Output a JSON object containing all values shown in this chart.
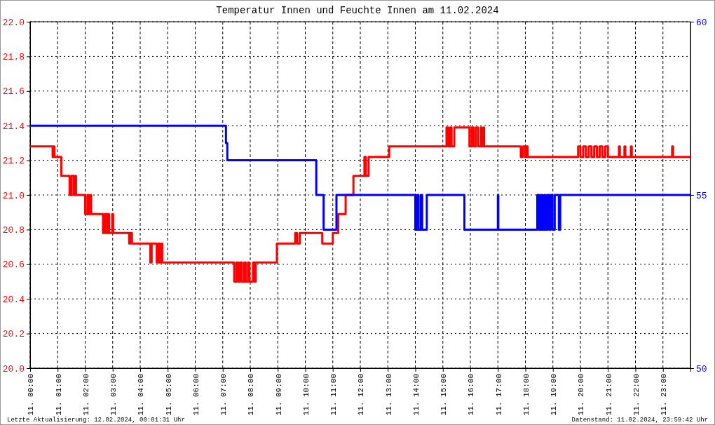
{
  "chart_data": {
    "type": "step",
    "title": "Temperatur Innen und Feuchte Innen am 11.02.2024",
    "annotations": [
      "Letzte Aktualisierung: 12.02.2024, 00:01:31 Uhr",
      "Datenstand: 11.02.2024, 23:59:42 Uhr"
    ],
    "xlim": [
      "2024-02-11T00:00",
      "2024-02-12T00:00"
    ],
    "xticks": [
      {
        "value": "2024-02-11T00:00",
        "label": "11. 00:00"
      },
      {
        "value": "2024-02-11T01:00",
        "label": "11. 01:00"
      },
      {
        "value": "2024-02-11T02:00",
        "label": "11. 02:00"
      },
      {
        "value": "2024-02-11T03:00",
        "label": "11. 03:00"
      },
      {
        "value": "2024-02-11T04:00",
        "label": "11. 04:00"
      },
      {
        "value": "2024-02-11T05:00",
        "label": "11. 05:00"
      },
      {
        "value": "2024-02-11T06:00",
        "label": "11. 06:00"
      },
      {
        "value": "2024-02-11T07:00",
        "label": "11. 07:00"
      },
      {
        "value": "2024-02-11T08:00",
        "label": "11. 08:00"
      },
      {
        "value": "2024-02-11T09:00",
        "label": "11. 09:00"
      },
      {
        "value": "2024-02-11T10:00",
        "label": "11. 10:00"
      },
      {
        "value": "2024-02-11T11:00",
        "label": "11. 11:00"
      },
      {
        "value": "2024-02-11T12:00",
        "label": "11. 12:00"
      },
      {
        "value": "2024-02-11T13:00",
        "label": "11. 13:00"
      },
      {
        "value": "2024-02-11T14:00",
        "label": "11. 14:00"
      },
      {
        "value": "2024-02-11T15:00",
        "label": "11. 15:00"
      },
      {
        "value": "2024-02-11T16:00",
        "label": "11. 16:00"
      },
      {
        "value": "2024-02-11T17:00",
        "label": "11. 17:00"
      },
      {
        "value": "2024-02-11T18:00",
        "label": "11. 18:00"
      },
      {
        "value": "2024-02-11T19:00",
        "label": "11. 19:00"
      },
      {
        "value": "2024-02-11T20:00",
        "label": "11. 20:00"
      },
      {
        "value": "2024-02-11T21:00",
        "label": "11. 21:00"
      },
      {
        "value": "2024-02-11T22:00",
        "label": "11. 22:00"
      },
      {
        "value": "2024-02-11T23:00",
        "label": "11. 23:00"
      }
    ],
    "ylim": [
      20,
      22
    ],
    "yticks": [
      {
        "value": 20,
        "label": "20.0"
      },
      {
        "value": 20.2,
        "label": "20.2"
      },
      {
        "value": 20.4,
        "label": "20.4"
      },
      {
        "value": 20.6,
        "label": "20.6"
      },
      {
        "value": 20.8,
        "label": "20.8"
      },
      {
        "value": 21,
        "label": "21.0"
      },
      {
        "value": 21.2,
        "label": "21.2"
      },
      {
        "value": 21.4,
        "label": "21.4"
      },
      {
        "value": 21.6,
        "label": "21.6"
      },
      {
        "value": 21.8,
        "label": "21.8"
      },
      {
        "value": 22,
        "label": "22.0"
      }
    ],
    "y2lim": [
      50,
      60
    ],
    "y2ticks": [
      50,
      55,
      60
    ],
    "grid": true,
    "series": [
      {
        "color": "#ff0000",
        "x": [
          "2024-02-11T00:00",
          "2024-02-11T00:49",
          "2024-02-11T00:51",
          "2024-02-11T00:53",
          "2024-02-11T01:08",
          "2024-02-11T01:26",
          "2024-02-11T01:30",
          "2024-02-11T01:35",
          "2024-02-11T01:38",
          "2024-02-11T01:40",
          "2024-02-11T02:00",
          "2024-02-11T02:05",
          "2024-02-11T02:08",
          "2024-02-11T02:12",
          "2024-02-11T02:13",
          "2024-02-11T02:39",
          "2024-02-11T02:43",
          "2024-02-11T02:47",
          "2024-02-11T02:50",
          "2024-02-11T02:52",
          "2024-02-11T02:59",
          "2024-02-11T03:01",
          "2024-02-11T03:36",
          "2024-02-11T03:38",
          "2024-02-11T03:42",
          "2024-02-11T04:22",
          "2024-02-11T04:25",
          "2024-02-11T04:36",
          "2024-02-11T04:40",
          "2024-02-11T04:43",
          "2024-02-11T04:47",
          "2024-02-11T04:48",
          "2024-02-11T07:25",
          "2024-02-11T07:30",
          "2024-02-11T07:34",
          "2024-02-11T07:38",
          "2024-02-11T07:42",
          "2024-02-11T07:47",
          "2024-02-11T07:50",
          "2024-02-11T07:55",
          "2024-02-11T07:58",
          "2024-02-11T08:06",
          "2024-02-11T08:10",
          "2024-02-11T08:12",
          "2024-02-11T08:58",
          "2024-02-11T09:38",
          "2024-02-11T09:42",
          "2024-02-11T09:48",
          "2024-02-11T10:37",
          "2024-02-11T11:00",
          "2024-02-11T11:12",
          "2024-02-11T11:28",
          "2024-02-11T11:45",
          "2024-02-11T12:09",
          "2024-02-11T12:12",
          "2024-02-11T12:18",
          "2024-02-11T13:03",
          "2024-02-11T15:08",
          "2024-02-11T15:12",
          "2024-02-11T15:16",
          "2024-02-11T15:19",
          "2024-02-11T15:25",
          "2024-02-11T15:58",
          "2024-02-11T16:03",
          "2024-02-11T16:07",
          "2024-02-11T16:12",
          "2024-02-11T16:17",
          "2024-02-11T16:23",
          "2024-02-11T16:25",
          "2024-02-11T16:29",
          "2024-02-11T16:30",
          "2024-02-11T17:50",
          "2024-02-11T17:54",
          "2024-02-11T17:59",
          "2024-02-11T18:02",
          "2024-02-11T18:05",
          "2024-02-11T19:55",
          "2024-02-11T20:00",
          "2024-02-11T20:06",
          "2024-02-11T20:12",
          "2024-02-11T20:18",
          "2024-02-11T20:24",
          "2024-02-11T20:30",
          "2024-02-11T20:36",
          "2024-02-11T20:42",
          "2024-02-11T20:48",
          "2024-02-11T20:54",
          "2024-02-11T21:00",
          "2024-02-11T21:24",
          "2024-02-11T21:26",
          "2024-02-11T21:36",
          "2024-02-11T21:38",
          "2024-02-11T21:50",
          "2024-02-11T21:52",
          "2024-02-11T23:20",
          "2024-02-11T23:22",
          "2024-02-12T00:00"
        ],
        "values": [
          21.28,
          21.22,
          21.28,
          21.22,
          21.11,
          21.0,
          21.11,
          21.0,
          21.11,
          21.0,
          20.89,
          21.0,
          20.89,
          21.0,
          20.89,
          20.78,
          20.89,
          20.78,
          20.89,
          20.78,
          20.89,
          20.78,
          20.72,
          20.78,
          20.72,
          20.61,
          20.72,
          20.61,
          20.72,
          20.61,
          20.72,
          20.61,
          20.5,
          20.61,
          20.5,
          20.61,
          20.5,
          20.61,
          20.5,
          20.61,
          20.5,
          20.61,
          20.5,
          20.61,
          20.72,
          20.78,
          20.72,
          20.78,
          20.72,
          20.78,
          20.89,
          21.0,
          21.11,
          21.22,
          21.11,
          21.22,
          21.28,
          21.39,
          21.28,
          21.39,
          21.28,
          21.39,
          21.28,
          21.39,
          21.28,
          21.39,
          21.28,
          21.39,
          21.28,
          21.39,
          21.28,
          21.22,
          21.28,
          21.22,
          21.28,
          21.22,
          21.28,
          21.22,
          21.28,
          21.22,
          21.28,
          21.22,
          21.28,
          21.22,
          21.28,
          21.22,
          21.28,
          21.22,
          21.28,
          21.22,
          21.28,
          21.22,
          21.28,
          21.22,
          21.28,
          21.22,
          21.22
        ]
      },
      {
        "color": "#0000ff",
        "axis": "y2",
        "x": [
          "2024-02-11T00:00",
          "2024-02-11T07:07",
          "2024-02-11T07:10",
          "2024-02-11T10:24",
          "2024-02-11T10:40",
          "2024-02-11T11:08",
          "2024-02-11T14:00",
          "2024-02-11T14:04",
          "2024-02-11T14:07",
          "2024-02-11T14:12",
          "2024-02-11T14:15",
          "2024-02-11T14:25",
          "2024-02-11T15:47",
          "2024-02-11T17:00",
          "2024-02-11T17:01",
          "2024-02-11T18:26",
          "2024-02-11T18:30",
          "2024-02-11T18:34",
          "2024-02-11T18:37",
          "2024-02-11T18:41",
          "2024-02-11T18:44",
          "2024-02-11T18:48",
          "2024-02-11T18:52",
          "2024-02-11T18:55",
          "2024-02-11T18:59",
          "2024-02-11T19:04",
          "2024-02-11T19:13",
          "2024-02-11T19:16",
          "2024-02-12T00:00"
        ],
        "values": [
          57,
          56.5,
          56,
          55,
          54,
          55,
          54,
          55,
          54,
          55,
          54,
          55,
          54,
          55,
          54,
          55,
          54,
          55,
          54,
          55,
          54,
          55,
          54,
          55,
          54,
          55,
          54,
          55,
          55
        ]
      }
    ]
  }
}
